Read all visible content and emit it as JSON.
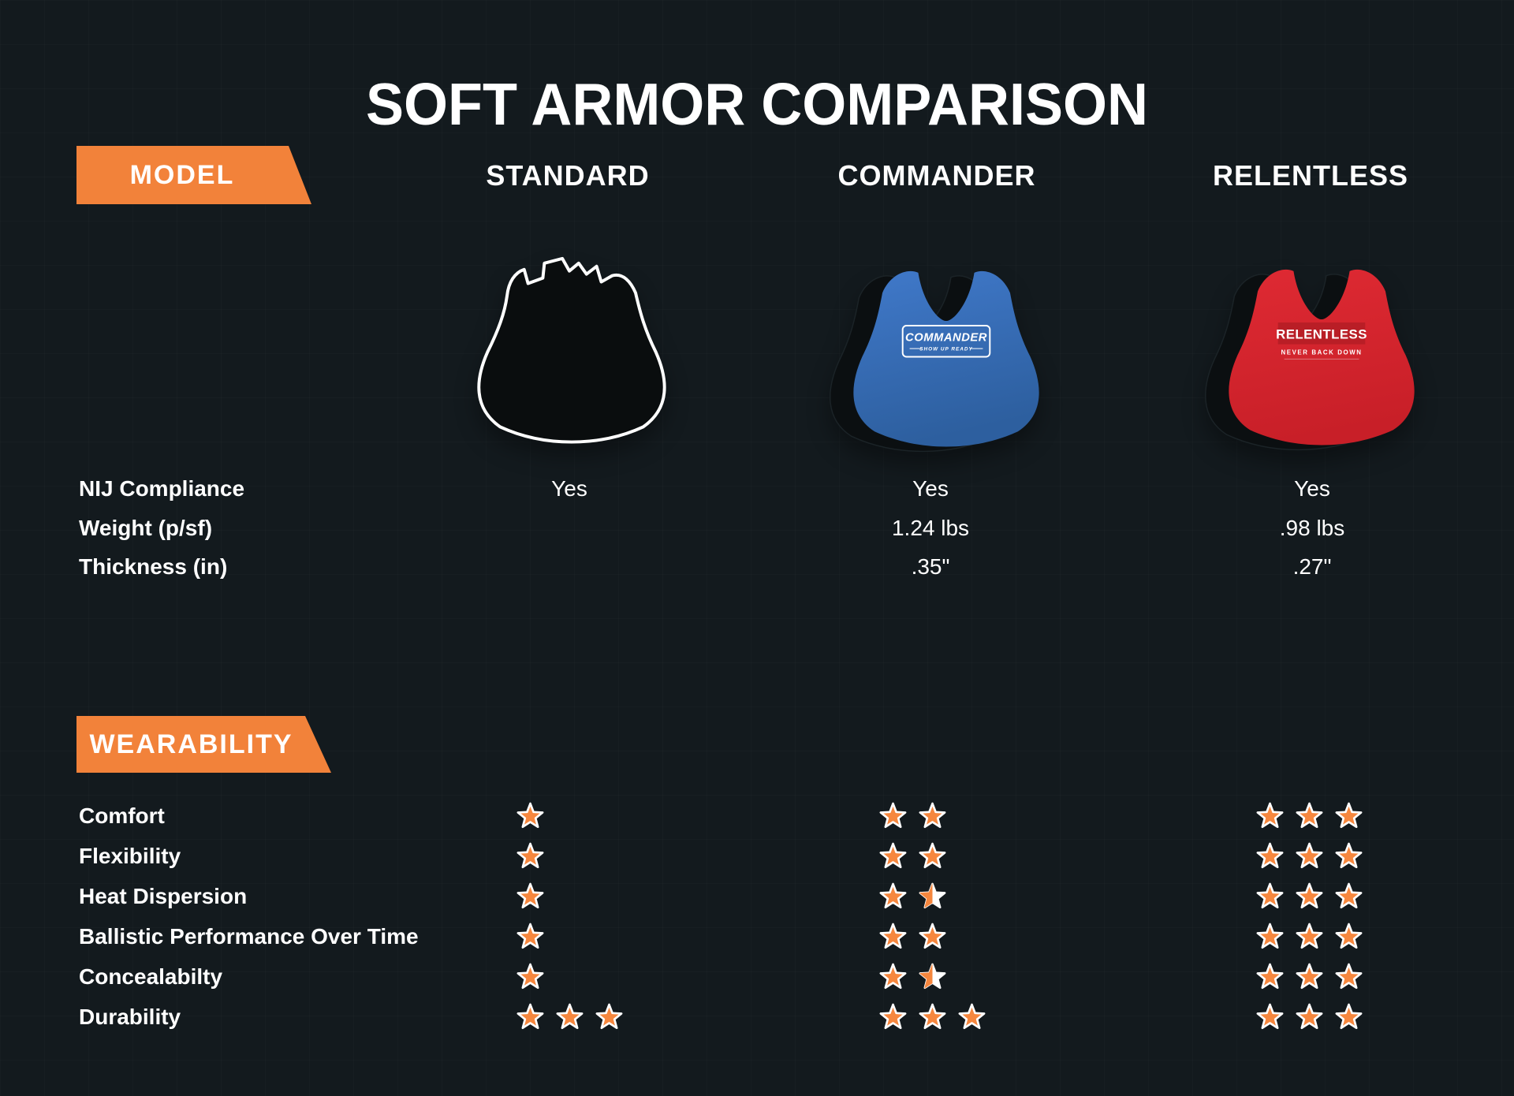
{
  "title": "SOFT ARMOR COMPARISON",
  "sections": {
    "model": "MODEL",
    "wearability": "WEARABILITY"
  },
  "spec_rows": [
    {
      "key": "nij",
      "label": "NIJ Compliance"
    },
    {
      "key": "weight",
      "label": "Weight (p/sf)"
    },
    {
      "key": "thickness",
      "label": "Thickness (in)"
    }
  ],
  "rating_rows": [
    {
      "key": "comfort",
      "label": "Comfort"
    },
    {
      "key": "flexibility",
      "label": "Flexibility"
    },
    {
      "key": "heat",
      "label": "Heat Dispersion"
    },
    {
      "key": "ballistic",
      "label": "Ballistic Performance Over Time"
    },
    {
      "key": "conceal",
      "label": "Concealabilty"
    },
    {
      "key": "durability",
      "label": "Durability"
    }
  ],
  "columns": [
    {
      "name": "STANDARD",
      "vest_label": "",
      "vest_tagline": "",
      "specs": {
        "nij": "Yes",
        "weight": "",
        "thickness": ""
      },
      "ratings": {
        "comfort": 1,
        "flexibility": 1,
        "heat": 1,
        "ballistic": 1,
        "conceal": 1,
        "durability": 3
      }
    },
    {
      "name": "COMMANDER",
      "vest_label": "COMMANDER",
      "vest_tagline": "SHOW UP READY",
      "specs": {
        "nij": "Yes",
        "weight": "1.24 lbs",
        "thickness": ".35\""
      },
      "ratings": {
        "comfort": 2,
        "flexibility": 2,
        "heat": 1.5,
        "ballistic": 2,
        "conceal": 1.5,
        "durability": 3
      }
    },
    {
      "name": "RELENTLESS",
      "vest_label": "RELENTLESS",
      "vest_tagline": "NEVER BACK DOWN",
      "specs": {
        "nij": "Yes",
        "weight": ".98 lbs",
        "thickness": ".27\""
      },
      "ratings": {
        "comfort": 3,
        "flexibility": 3,
        "heat": 3,
        "ballistic": 3,
        "conceal": 3,
        "durability": 3
      }
    }
  ],
  "colors": {
    "background": "#131a1e",
    "accent_orange": "#f2823a",
    "star_orange": "#f6873e",
    "commander_blue": "#3b74c4",
    "relentless_red": "#d9252e"
  },
  "chart_data": {
    "type": "table",
    "title": "SOFT ARMOR COMPARISON",
    "columns": [
      "STANDARD",
      "COMMANDER",
      "RELENTLESS"
    ],
    "rows": [
      {
        "label": "NIJ Compliance",
        "values": [
          "Yes",
          "Yes",
          "Yes"
        ]
      },
      {
        "label": "Weight (p/sf)",
        "values": [
          "",
          "1.24 lbs",
          ".98 lbs"
        ]
      },
      {
        "label": "Thickness (in)",
        "values": [
          "",
          ".35\"",
          ".27\""
        ]
      },
      {
        "label": "Comfort",
        "unit": "stars",
        "max": 3,
        "values": [
          1,
          2,
          3
        ]
      },
      {
        "label": "Flexibility",
        "unit": "stars",
        "max": 3,
        "values": [
          1,
          2,
          3
        ]
      },
      {
        "label": "Heat Dispersion",
        "unit": "stars",
        "max": 3,
        "values": [
          1,
          1.5,
          3
        ]
      },
      {
        "label": "Ballistic Performance Over Time",
        "unit": "stars",
        "max": 3,
        "values": [
          1,
          2,
          3
        ]
      },
      {
        "label": "Concealabilty",
        "unit": "stars",
        "max": 3,
        "values": [
          1,
          1.5,
          3
        ]
      },
      {
        "label": "Durability",
        "unit": "stars",
        "max": 3,
        "values": [
          3,
          3,
          3
        ]
      }
    ]
  }
}
